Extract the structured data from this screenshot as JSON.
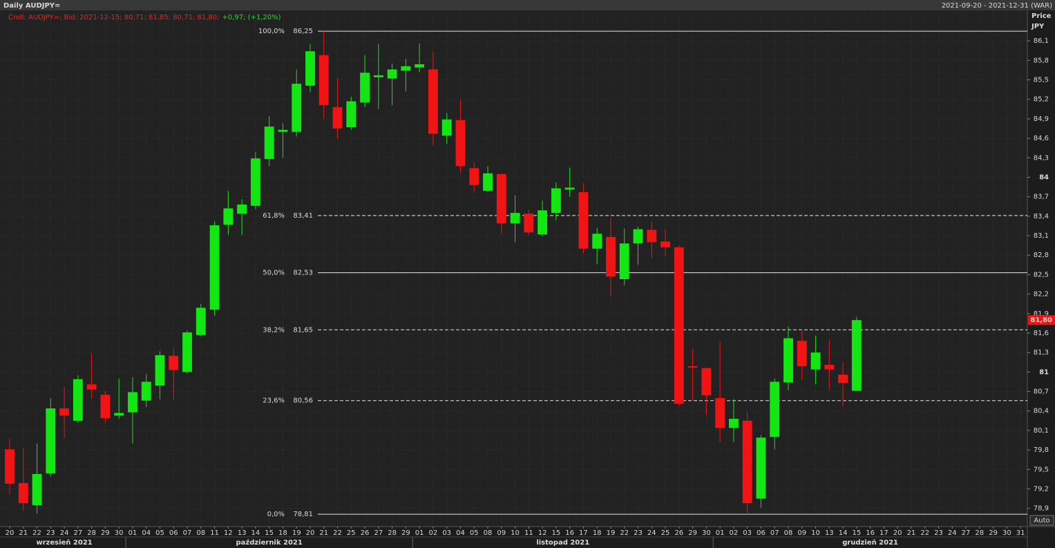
{
  "chart_data": {
    "type": "candlestick",
    "title": "Daily AUDJPY=",
    "subtitle": "2021-09-20 - 2021-12-31 (WAR)",
    "legend_text": [
      "Cndl; AUDJPY=; Bid; 2021-12-15; 80,71; 81,85; 80,71; 81,80;",
      "+0,97; (+1,20%)"
    ],
    "y_axis_label": "Price",
    "y_axis_unit": "JPY",
    "scale_button": "Auto",
    "categories": [
      "20",
      "21",
      "22",
      "23",
      "24",
      "27",
      "28",
      "29",
      "30",
      "01",
      "04",
      "05",
      "06",
      "07",
      "08",
      "11",
      "12",
      "13",
      "14",
      "15",
      "18",
      "19",
      "20",
      "21",
      "22",
      "25",
      "26",
      "27",
      "28",
      "29",
      "01",
      "02",
      "03",
      "04",
      "05",
      "08",
      "09",
      "10",
      "11",
      "12",
      "15",
      "16",
      "17",
      "18",
      "19",
      "22",
      "23",
      "24",
      "25",
      "26",
      "29",
      "30",
      "01",
      "02",
      "03",
      "06",
      "07",
      "08",
      "09",
      "10",
      "13",
      "14",
      "15",
      "16",
      "17",
      "20",
      "21",
      "22",
      "23",
      "24",
      "27",
      "28",
      "29",
      "30",
      "31"
    ],
    "months": [
      "wrzesień 2021",
      "październik 2021",
      "listopad 2021",
      "grudzień 2021"
    ],
    "open": [
      79.81,
      79.29,
      78.95,
      79.44,
      80.44,
      80.25,
      80.81,
      80.65,
      80.33,
      80.38,
      80.56,
      80.79,
      81.25,
      81.0,
      81.57,
      81.96,
      83.27,
      83.44,
      83.56,
      84.28,
      84.7,
      84.7,
      85.41,
      85.88,
      85.08,
      84.77,
      85.15,
      85.54,
      85.52,
      85.64,
      85.69,
      85.66,
      84.64,
      84.88,
      84.14,
      83.79,
      84.05,
      83.29,
      83.44,
      83.12,
      83.45,
      83.81,
      83.77,
      82.9,
      83.08,
      82.43,
      82.98,
      83.19,
      83.01,
      82.92,
      81.09,
      81.06,
      80.6,
      80.14,
      80.25,
      79.05,
      80.0,
      80.84,
      81.48,
      81.04,
      81.11,
      80.96,
      80.71,
      null,
      null,
      null,
      null,
      null,
      null,
      null,
      null,
      null,
      null,
      null,
      null
    ],
    "high": [
      79.97,
      79.83,
      79.9,
      80.6,
      80.77,
      80.95,
      81.29,
      80.71,
      80.9,
      80.92,
      80.97,
      81.32,
      81.37,
      81.64,
      82.05,
      83.32,
      83.79,
      83.66,
      84.39,
      84.94,
      84.83,
      85.66,
      86.05,
      86.25,
      85.53,
      85.24,
      85.88,
      86.05,
      85.75,
      85.82,
      86.06,
      85.93,
      84.99,
      85.19,
      84.23,
      84.17,
      84.05,
      83.72,
      83.5,
      83.64,
      83.92,
      84.15,
      83.91,
      83.22,
      83.37,
      83.21,
      83.24,
      83.32,
      83.2,
      82.95,
      81.36,
      81.07,
      81.47,
      80.58,
      80.38,
      80.03,
      80.9,
      81.7,
      81.63,
      81.56,
      81.49,
      81.15,
      81.85,
      null,
      null,
      null,
      null,
      null,
      null,
      null,
      null,
      null,
      null,
      null,
      null
    ],
    "low": [
      79.12,
      78.86,
      78.82,
      79.39,
      79.99,
      80.22,
      80.59,
      80.21,
      80.28,
      79.9,
      80.46,
      80.58,
      80.58,
      80.98,
      81.55,
      81.87,
      83.11,
      83.11,
      83.51,
      84.17,
      84.3,
      84.63,
      85.31,
      84.9,
      84.6,
      84.73,
      85.08,
      85.05,
      85.11,
      85.32,
      85.62,
      84.49,
      84.51,
      84.07,
      83.77,
      83.77,
      83.13,
      83.0,
      83.11,
      83.09,
      83.34,
      83.7,
      82.82,
      82.66,
      82.17,
      82.34,
      82.65,
      82.75,
      82.79,
      80.48,
      80.56,
      80.34,
      79.92,
      79.92,
      78.81,
      78.91,
      79.81,
      80.72,
      80.88,
      80.81,
      80.73,
      80.48,
      80.71,
      null,
      null,
      null,
      null,
      null,
      null,
      null,
      null,
      null,
      null,
      null,
      null
    ],
    "close": [
      79.28,
      78.98,
      79.43,
      80.44,
      80.33,
      80.89,
      80.73,
      80.29,
      80.37,
      80.69,
      80.85,
      81.26,
      81.03,
      81.61,
      81.99,
      83.26,
      83.52,
      83.58,
      84.29,
      84.78,
      84.73,
      85.44,
      85.94,
      85.11,
      84.75,
      85.17,
      85.61,
      85.57,
      85.66,
      85.71,
      85.74,
      84.67,
      84.89,
      84.17,
      83.88,
      84.06,
      83.29,
      83.45,
      83.15,
      83.49,
      83.83,
      83.84,
      82.9,
      83.13,
      82.47,
      82.98,
      83.2,
      83.0,
      82.92,
      80.51,
      81.07,
      80.64,
      80.14,
      80.28,
      78.98,
      79.99,
      80.85,
      81.52,
      81.09,
      81.3,
      81.04,
      80.83,
      81.8,
      null,
      null,
      null,
      null,
      null,
      null,
      null,
      null,
      null,
      null,
      null,
      null
    ],
    "up_color": "#14e614",
    "down_color": "#f01414",
    "ylim": [
      78.62,
      86.57
    ],
    "yticks": [
      {
        "value": 86.1,
        "label": "86,1"
      },
      {
        "value": 85.8,
        "label": "85,8"
      },
      {
        "value": 85.5,
        "label": "85,5"
      },
      {
        "value": 85.2,
        "label": "85,2"
      },
      {
        "value": 84.9,
        "label": "84,9"
      },
      {
        "value": 84.6,
        "label": "84,6"
      },
      {
        "value": 84.3,
        "label": "84,3"
      },
      84,
      {
        "value": 83.7,
        "label": "83,7"
      },
      {
        "value": 83.4,
        "label": "83,4"
      },
      {
        "value": 83.1,
        "label": "83,1"
      },
      {
        "value": 82.8,
        "label": "82,8"
      },
      {
        "value": 82.5,
        "label": "82,5"
      },
      {
        "value": 82.2,
        "label": "82,2"
      },
      {
        "value": 81.9,
        "label": "81,9"
      },
      {
        "value": 81.6,
        "label": "81,6"
      },
      {
        "value": 81.3,
        "label": "81,3"
      },
      81,
      {
        "value": 80.7,
        "label": "80,7"
      },
      {
        "value": 80.4,
        "label": "80,4"
      },
      {
        "value": 80.1,
        "label": "80,1"
      },
      {
        "value": 79.8,
        "label": "79,8"
      },
      {
        "value": 79.5,
        "label": "79,5"
      },
      {
        "value": 79.2,
        "label": "79,2"
      },
      {
        "value": 78.9,
        "label": "78,9"
      }
    ],
    "grid": true,
    "fib_levels": [
      {
        "percent": "100,0%",
        "price": {
          "value": 86.25,
          "label": "86,25"
        },
        "dashed": false
      },
      {
        "percent": "61,8%",
        "price": {
          "value": 83.41,
          "label": "83,41"
        },
        "dashed": true
      },
      {
        "percent": "50,0%",
        "price": {
          "value": 82.53,
          "label": "82,53"
        },
        "dashed": false
      },
      {
        "percent": "38,2%",
        "price": {
          "value": 81.65,
          "label": "81,65"
        },
        "dashed": true
      },
      {
        "percent": "23,6%",
        "price": {
          "value": 80.56,
          "label": "80,56"
        },
        "dashed": true
      },
      {
        "percent": "0,0%",
        "price": {
          "value": 78.81,
          "label": "78,81"
        },
        "dashed": false
      }
    ],
    "last_price": {
      "value": 81.8,
      "label": "81,80"
    }
  }
}
